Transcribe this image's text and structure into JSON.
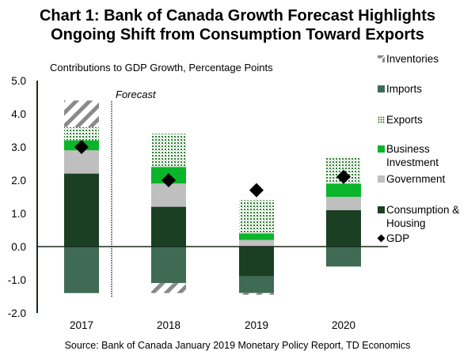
{
  "chart_data": {
    "type": "bar",
    "stacked": true,
    "title": "Chart 1: Bank of Canada Growth Forecast Highlights Ongoing Shift from Consumption Toward Exports",
    "title_lines": [
      "Chart 1: Bank of Canada Growth Forecast Highlights",
      "Ongoing Shift from Consumption Toward Exports"
    ],
    "ylabel": "Contributions to GDP Growth, Percentage Points",
    "xlabel": "",
    "ylim": [
      -2.0,
      5.0
    ],
    "yticks": [
      "5.0",
      "4.0",
      "3.0",
      "2.0",
      "1.0",
      "0.0",
      "-1.0",
      "-2.0"
    ],
    "ytick_values": [
      5,
      4,
      3,
      2,
      1,
      0,
      -1,
      -2
    ],
    "categories": [
      "2017",
      "2018",
      "2019",
      "2020"
    ],
    "annotation": "Forecast",
    "forecast_starts_after": "2017",
    "grid": false,
    "legend_position": "right",
    "series": [
      {
        "name": "Consumption & Housing",
        "legend_lines": [
          "Consumption &",
          "Housing"
        ],
        "color": "#1a3f22",
        "pattern": "solid",
        "values": [
          2.2,
          1.2,
          -0.9,
          1.1
        ]
      },
      {
        "name": "Government",
        "legend_lines": [
          "Government"
        ],
        "color": "#bfbfbf",
        "pattern": "solid",
        "values": [
          0.7,
          0.7,
          0.2,
          0.4
        ]
      },
      {
        "name": "Business Investment",
        "legend_lines": [
          "Business",
          "Investment"
        ],
        "color": "#0ab52a",
        "pattern": "solid",
        "values": [
          0.3,
          0.5,
          0.2,
          0.4
        ]
      },
      {
        "name": "Exports",
        "legend_lines": [
          "Exports"
        ],
        "color": "#2e7d32",
        "pattern": "dots",
        "values": [
          0.4,
          1.0,
          1.0,
          0.8
        ]
      },
      {
        "name": "Imports",
        "legend_lines": [
          "Imports"
        ],
        "color": "#3f6b55",
        "pattern": "solid",
        "values": [
          -1.4,
          -1.1,
          -0.5,
          -0.6
        ]
      },
      {
        "name": "Inventories",
        "legend_lines": [
          "Inventories"
        ],
        "color": "#808080",
        "pattern": "diagonal",
        "values": [
          0.8,
          -0.3,
          -0.05,
          0.0
        ]
      }
    ],
    "markers": {
      "name": "GDP",
      "legend_lines": [
        "GDP"
      ],
      "color": "#000000",
      "shape": "diamond",
      "values": [
        3.0,
        2.0,
        1.7,
        2.1
      ]
    },
    "legend_order": [
      "Inventories",
      "Imports",
      "Exports",
      "Business Investment",
      "Government",
      "Consumption & Housing",
      "GDP"
    ],
    "source": "Source: Bank of Canada January 2019 Monetary Policy Report, TD Economics"
  }
}
